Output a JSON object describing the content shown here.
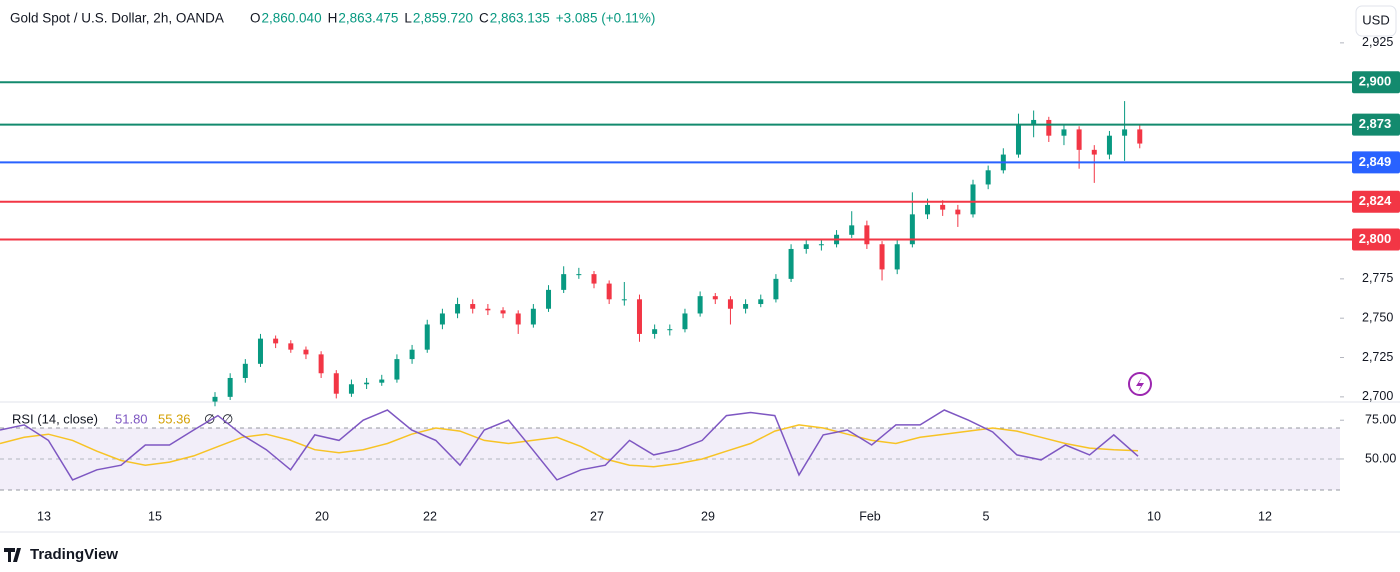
{
  "header": {
    "symbol": "Gold Spot / U.S. Dollar, 2h, OANDA",
    "ohlc": [
      {
        "key": "O",
        "value": "2,860.040"
      },
      {
        "key": "H",
        "value": "2,863.475"
      },
      {
        "key": "L",
        "value": "2,859.720"
      },
      {
        "key": "C",
        "value": "2,863.135"
      }
    ],
    "change": "+3.085 (+0.11%)",
    "currency": "USD"
  },
  "price_chart": {
    "type": "candlestick",
    "ylim": [
      2698,
      2930
    ],
    "yticks": [
      {
        "value": 2925,
        "label": "2,925"
      },
      {
        "value": 2775,
        "label": "2,775"
      },
      {
        "value": 2750,
        "label": "2,750"
      },
      {
        "value": 2725,
        "label": "2,725"
      },
      {
        "value": 2700,
        "label": "2,700"
      }
    ],
    "up_color": "#089981",
    "down_color": "#f23645",
    "levels": [
      {
        "value": 2900,
        "label": "2,900",
        "color": "#138a6e"
      },
      {
        "value": 2873,
        "label": "2,873",
        "color": "#138a6e"
      },
      {
        "value": 2849,
        "label": "2,849",
        "color": "#2962ff"
      },
      {
        "value": 2824,
        "label": "2,824",
        "color": "#f23645"
      },
      {
        "value": 2800,
        "label": "2,800",
        "color": "#f23645"
      }
    ],
    "candles": [
      [
        2697,
        2703,
        2694,
        2700
      ],
      [
        2700,
        2715,
        2698,
        2712
      ],
      [
        2712,
        2724,
        2709,
        2721
      ],
      [
        2721,
        2740,
        2719,
        2737
      ],
      [
        2737,
        2739,
        2731,
        2734
      ],
      [
        2734,
        2736,
        2728,
        2730
      ],
      [
        2730,
        2732,
        2724,
        2727
      ],
      [
        2727,
        2729,
        2712,
        2715
      ],
      [
        2715,
        2717,
        2699,
        2702
      ],
      [
        2702,
        2711,
        2700,
        2708
      ],
      [
        2708,
        2712,
        2705,
        2709
      ],
      [
        2709,
        2714,
        2707,
        2711
      ],
      [
        2711,
        2727,
        2709,
        2724
      ],
      [
        2724,
        2733,
        2721,
        2730
      ],
      [
        2730,
        2749,
        2728,
        2746
      ],
      [
        2746,
        2756,
        2743,
        2753
      ],
      [
        2753,
        2763,
        2750,
        2759
      ],
      [
        2759,
        2762,
        2753,
        2756
      ],
      [
        2756,
        2759,
        2752,
        2755
      ],
      [
        2755,
        2757,
        2750,
        2753
      ],
      [
        2753,
        2755,
        2740,
        2746
      ],
      [
        2746,
        2759,
        2744,
        2756
      ],
      [
        2756,
        2771,
        2754,
        2768
      ],
      [
        2768,
        2783,
        2766,
        2778
      ],
      [
        2778,
        2782,
        2775,
        2778
      ],
      [
        2778,
        2780,
        2769,
        2772
      ],
      [
        2772,
        2774,
        2759,
        2762
      ],
      [
        2762,
        2773,
        2758,
        2762
      ],
      [
        2762,
        2765,
        2735,
        2740
      ],
      [
        2740,
        2746,
        2737,
        2743
      ],
      [
        2743,
        2746,
        2739,
        2743
      ],
      [
        2743,
        2756,
        2741,
        2753
      ],
      [
        2753,
        2767,
        2751,
        2764
      ],
      [
        2764,
        2766,
        2759,
        2762
      ],
      [
        2762,
        2764,
        2746,
        2756
      ],
      [
        2756,
        2762,
        2753,
        2759
      ],
      [
        2759,
        2765,
        2757,
        2762
      ],
      [
        2762,
        2778,
        2760,
        2775
      ],
      [
        2775,
        2797,
        2773,
        2794
      ],
      [
        2794,
        2800,
        2791,
        2797
      ],
      [
        2797,
        2800,
        2793,
        2797
      ],
      [
        2797,
        2806,
        2795,
        2803
      ],
      [
        2803,
        2818,
        2801,
        2809
      ],
      [
        2809,
        2812,
        2794,
        2797
      ],
      [
        2797,
        2799,
        2774,
        2781
      ],
      [
        2781,
        2800,
        2778,
        2797
      ],
      [
        2797,
        2830,
        2795,
        2816
      ],
      [
        2816,
        2826,
        2813,
        2822
      ],
      [
        2822,
        2825,
        2815,
        2819
      ],
      [
        2819,
        2822,
        2808,
        2816
      ],
      [
        2816,
        2838,
        2814,
        2835
      ],
      [
        2835,
        2847,
        2832,
        2844
      ],
      [
        2844,
        2858,
        2842,
        2854
      ],
      [
        2854,
        2880,
        2852,
        2873
      ],
      [
        2873,
        2882,
        2865,
        2876
      ],
      [
        2876,
        2878,
        2862,
        2866
      ],
      [
        2866,
        2873,
        2860,
        2870
      ],
      [
        2870,
        2872,
        2845,
        2857
      ],
      [
        2857,
        2860,
        2836,
        2854
      ],
      [
        2854,
        2869,
        2851,
        2866
      ],
      [
        2866,
        2888,
        2850,
        2870
      ],
      [
        2870,
        2873,
        2858,
        2861
      ]
    ]
  },
  "rsi": {
    "title": "RSI (14, close)",
    "value_text": "51.80",
    "ma_text": "55.36",
    "flags": [
      "∅",
      "∅"
    ],
    "ylim": [
      28.7,
      86.1
    ],
    "yticks": [
      {
        "value": 75,
        "label": "75.00"
      },
      {
        "value": 50,
        "label": "50.00"
      }
    ],
    "color": "#7e57c2",
    "ma_color": "#f7c325",
    "values": [
      68.7,
      72,
      62,
      36.5,
      43,
      46,
      59,
      59,
      68.7,
      78,
      65.5,
      56,
      43,
      65.5,
      62,
      75,
      81.6,
      68.7,
      62,
      46,
      68.7,
      75,
      56,
      36.5,
      43,
      46,
      62,
      52.6,
      56,
      62,
      78,
      80,
      78,
      39.7,
      65.5,
      68.7,
      59,
      72,
      72,
      81.6,
      75,
      67.4,
      52.6,
      49.4,
      59,
      52.6,
      65.5,
      51.8
    ],
    "ma": [
      60,
      64,
      66,
      62,
      55,
      49,
      46,
      48,
      52,
      58,
      64,
      66,
      62,
      56,
      54,
      56,
      60,
      66,
      70,
      68,
      62,
      60,
      62,
      64,
      58,
      50,
      46,
      45,
      47,
      50,
      55,
      60,
      68,
      72,
      70,
      66,
      62,
      60,
      64,
      66,
      68,
      70,
      68,
      64,
      60,
      57,
      56,
      55.36
    ]
  },
  "time_axis": [
    "13",
    "15",
    "20",
    "22",
    "27",
    "29",
    "Feb",
    "5",
    "10",
    "12"
  ],
  "footer": {
    "brand": "TradingView"
  }
}
